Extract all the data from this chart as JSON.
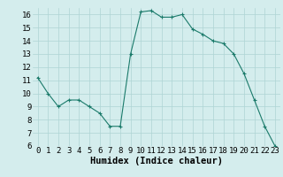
{
  "x": [
    0,
    1,
    2,
    3,
    4,
    5,
    6,
    7,
    8,
    9,
    10,
    11,
    12,
    13,
    14,
    15,
    16,
    17,
    18,
    19,
    20,
    21,
    22,
    23
  ],
  "y": [
    11.2,
    10.0,
    9.0,
    9.5,
    9.5,
    9.0,
    8.5,
    7.5,
    7.5,
    13.0,
    16.2,
    16.3,
    15.8,
    15.8,
    16.0,
    14.9,
    14.5,
    14.0,
    13.8,
    13.0,
    11.5,
    9.5,
    7.5,
    6.0
  ],
  "xlabel": "Humidex (Indice chaleur)",
  "ylim": [
    6,
    16.5
  ],
  "xlim": [
    -0.5,
    23.5
  ],
  "yticks": [
    6,
    7,
    8,
    9,
    10,
    11,
    12,
    13,
    14,
    15,
    16
  ],
  "xticks": [
    0,
    1,
    2,
    3,
    4,
    5,
    6,
    7,
    8,
    9,
    10,
    11,
    12,
    13,
    14,
    15,
    16,
    17,
    18,
    19,
    20,
    21,
    22,
    23
  ],
  "line_color": "#1a7a6a",
  "marker_color": "#1a7a6a",
  "bg_color": "#d4eded",
  "grid_color": "#aed4d4",
  "xlabel_fontsize": 7.5,
  "tick_fontsize": 6.5
}
